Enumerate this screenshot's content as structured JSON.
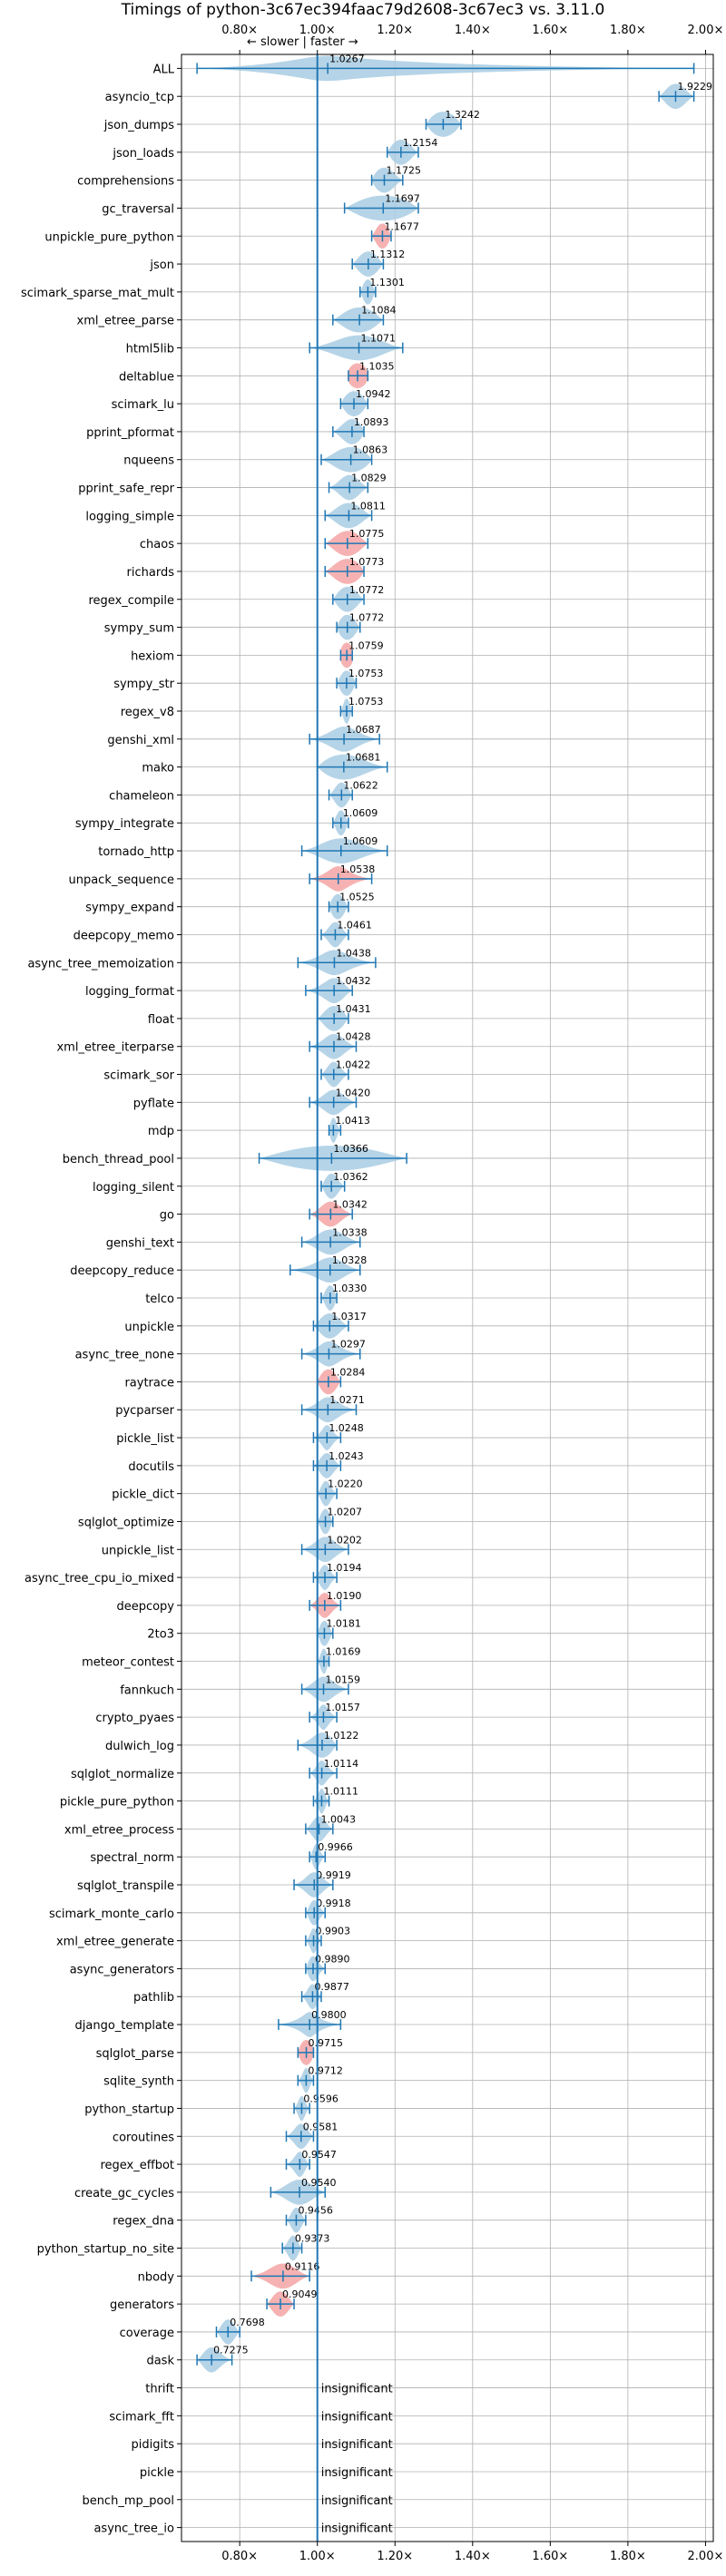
{
  "chart_data": {
    "type": "violin",
    "title": "Timings of python-3c67ec394faac79d2608-3c67ec3 vs. 3.11.0",
    "direction_label": "← slower | faster →",
    "xlim": [
      0.65,
      2.02
    ],
    "xticks": [
      0.8,
      1.0,
      1.2,
      1.4,
      1.6,
      1.8,
      2.0
    ],
    "xtick_labels": [
      "0.80×",
      "1.00×",
      "1.20×",
      "1.40×",
      "1.60×",
      "1.80×",
      "2.00×"
    ],
    "grid": true,
    "colors": {
      "normal": "#a9cce3",
      "regression": "#f5a5a5",
      "axis_line": "#1f77b4",
      "grid": "#b0b0b0"
    },
    "insignificant_label": "insignificant",
    "benchmarks": [
      {
        "name": "ALL",
        "value": 1.0267,
        "label": "1.0267",
        "lo": 0.69,
        "hi": 1.97,
        "spread": 0.1,
        "regressed": false
      },
      {
        "name": "asyncio_tcp",
        "value": 1.9229,
        "label": "1.9229",
        "lo": 1.88,
        "hi": 1.97,
        "spread": 0.03,
        "regressed": false
      },
      {
        "name": "json_dumps",
        "value": 1.3242,
        "label": "1.3242",
        "lo": 1.28,
        "hi": 1.37,
        "spread": 0.04,
        "regressed": false
      },
      {
        "name": "json_loads",
        "value": 1.2154,
        "label": "1.2154",
        "lo": 1.18,
        "hi": 1.26,
        "spread": 0.03,
        "regressed": false
      },
      {
        "name": "comprehensions",
        "value": 1.1725,
        "label": "1.1725",
        "lo": 1.14,
        "hi": 1.22,
        "spread": 0.03,
        "regressed": false
      },
      {
        "name": "gc_traversal",
        "value": 1.1697,
        "label": "1.1697",
        "lo": 1.07,
        "hi": 1.26,
        "spread": 0.08,
        "regressed": false
      },
      {
        "name": "unpickle_pure_python",
        "value": 1.1677,
        "label": "1.1677",
        "lo": 1.14,
        "hi": 1.19,
        "spread": 0.02,
        "regressed": true
      },
      {
        "name": "json",
        "value": 1.1312,
        "label": "1.1312",
        "lo": 1.09,
        "hi": 1.17,
        "spread": 0.03,
        "regressed": false
      },
      {
        "name": "scimark_sparse_mat_mult",
        "value": 1.1301,
        "label": "1.1301",
        "lo": 1.11,
        "hi": 1.15,
        "spread": 0.015,
        "regressed": false
      },
      {
        "name": "xml_etree_parse",
        "value": 1.1084,
        "label": "1.1084",
        "lo": 1.04,
        "hi": 1.17,
        "spread": 0.05,
        "regressed": false
      },
      {
        "name": "html5lib",
        "value": 1.1071,
        "label": "1.1071",
        "lo": 0.98,
        "hi": 1.22,
        "spread": 0.07,
        "regressed": false
      },
      {
        "name": "deltablue",
        "value": 1.1035,
        "label": "1.1035",
        "lo": 1.08,
        "hi": 1.13,
        "spread": 0.03,
        "regressed": true
      },
      {
        "name": "scimark_lu",
        "value": 1.0942,
        "label": "1.0942",
        "lo": 1.06,
        "hi": 1.13,
        "spread": 0.03,
        "regressed": false
      },
      {
        "name": "pprint_pformat",
        "value": 1.0893,
        "label": "1.0893",
        "lo": 1.04,
        "hi": 1.12,
        "spread": 0.03,
        "regressed": false
      },
      {
        "name": "nqueens",
        "value": 1.0863,
        "label": "1.0863",
        "lo": 1.01,
        "hi": 1.14,
        "spread": 0.05,
        "regressed": false
      },
      {
        "name": "pprint_safe_repr",
        "value": 1.0829,
        "label": "1.0829",
        "lo": 1.03,
        "hi": 1.13,
        "spread": 0.03,
        "regressed": false
      },
      {
        "name": "logging_simple",
        "value": 1.0811,
        "label": "1.0811",
        "lo": 1.02,
        "hi": 1.14,
        "spread": 0.04,
        "regressed": false
      },
      {
        "name": "chaos",
        "value": 1.0775,
        "label": "1.0775",
        "lo": 1.02,
        "hi": 1.13,
        "spread": 0.04,
        "regressed": true
      },
      {
        "name": "richards",
        "value": 1.0773,
        "label": "1.0773",
        "lo": 1.02,
        "hi": 1.12,
        "spread": 0.04,
        "regressed": true
      },
      {
        "name": "regex_compile",
        "value": 1.0772,
        "label": "1.0772",
        "lo": 1.04,
        "hi": 1.12,
        "spread": 0.03,
        "regressed": false
      },
      {
        "name": "sympy_sum",
        "value": 1.0772,
        "label": "1.0772",
        "lo": 1.05,
        "hi": 1.11,
        "spread": 0.025,
        "regressed": false
      },
      {
        "name": "hexiom",
        "value": 1.0759,
        "label": "1.0759",
        "lo": 1.06,
        "hi": 1.09,
        "spread": 0.02,
        "regressed": true
      },
      {
        "name": "sympy_str",
        "value": 1.0753,
        "label": "1.0753",
        "lo": 1.05,
        "hi": 1.1,
        "spread": 0.02,
        "regressed": false
      },
      {
        "name": "regex_v8",
        "value": 1.0753,
        "label": "1.0753",
        "lo": 1.06,
        "hi": 1.09,
        "spread": 0.01,
        "regressed": false
      },
      {
        "name": "genshi_xml",
        "value": 1.0687,
        "label": "1.0687",
        "lo": 0.98,
        "hi": 1.16,
        "spread": 0.04,
        "regressed": false
      },
      {
        "name": "mako",
        "value": 1.0681,
        "label": "1.0681",
        "lo": 1.0,
        "hi": 1.18,
        "spread": 0.06,
        "regressed": false
      },
      {
        "name": "chameleon",
        "value": 1.0622,
        "label": "1.0622",
        "lo": 1.03,
        "hi": 1.09,
        "spread": 0.02,
        "regressed": false
      },
      {
        "name": "sympy_integrate",
        "value": 1.0609,
        "label": "1.0609",
        "lo": 1.04,
        "hi": 1.08,
        "spread": 0.015,
        "regressed": false
      },
      {
        "name": "tornado_http",
        "value": 1.0609,
        "label": "1.0609",
        "lo": 0.96,
        "hi": 1.18,
        "spread": 0.06,
        "regressed": false
      },
      {
        "name": "unpack_sequence",
        "value": 1.0538,
        "label": "1.0538",
        "lo": 0.98,
        "hi": 1.14,
        "spread": 0.03,
        "regressed": true
      },
      {
        "name": "sympy_expand",
        "value": 1.0525,
        "label": "1.0525",
        "lo": 1.03,
        "hi": 1.08,
        "spread": 0.02,
        "regressed": false
      },
      {
        "name": "deepcopy_memo",
        "value": 1.0461,
        "label": "1.0461",
        "lo": 1.01,
        "hi": 1.08,
        "spread": 0.02,
        "regressed": false
      },
      {
        "name": "async_tree_memoization",
        "value": 1.0438,
        "label": "1.0438",
        "lo": 0.95,
        "hi": 1.15,
        "spread": 0.04,
        "regressed": false
      },
      {
        "name": "logging_format",
        "value": 1.0432,
        "label": "1.0432",
        "lo": 0.97,
        "hi": 1.09,
        "spread": 0.03,
        "regressed": false
      },
      {
        "name": "float",
        "value": 1.0431,
        "label": "1.0431",
        "lo": 1.0,
        "hi": 1.08,
        "spread": 0.03,
        "regressed": false
      },
      {
        "name": "xml_etree_iterparse",
        "value": 1.0428,
        "label": "1.0428",
        "lo": 0.98,
        "hi": 1.1,
        "spread": 0.03,
        "regressed": false
      },
      {
        "name": "scimark_sor",
        "value": 1.0422,
        "label": "1.0422",
        "lo": 1.01,
        "hi": 1.08,
        "spread": 0.02,
        "regressed": false
      },
      {
        "name": "pyflate",
        "value": 1.042,
        "label": "1.0420",
        "lo": 0.98,
        "hi": 1.1,
        "spread": 0.03,
        "regressed": false
      },
      {
        "name": "mdp",
        "value": 1.0413,
        "label": "1.0413",
        "lo": 1.03,
        "hi": 1.06,
        "spread": 0.01,
        "regressed": false
      },
      {
        "name": "bench_thread_pool",
        "value": 1.0366,
        "label": "1.0366",
        "lo": 0.85,
        "hi": 1.23,
        "spread": 0.15,
        "regressed": false
      },
      {
        "name": "logging_silent",
        "value": 1.0362,
        "label": "1.0362",
        "lo": 1.01,
        "hi": 1.07,
        "spread": 0.02,
        "regressed": false
      },
      {
        "name": "go",
        "value": 1.0342,
        "label": "1.0342",
        "lo": 0.98,
        "hi": 1.09,
        "spread": 0.03,
        "regressed": true
      },
      {
        "name": "genshi_text",
        "value": 1.0338,
        "label": "1.0338",
        "lo": 0.96,
        "hi": 1.11,
        "spread": 0.04,
        "regressed": false
      },
      {
        "name": "deepcopy_reduce",
        "value": 1.0328,
        "label": "1.0328",
        "lo": 0.93,
        "hi": 1.11,
        "spread": 0.04,
        "regressed": false
      },
      {
        "name": "telco",
        "value": 1.033,
        "label": "1.0330",
        "lo": 1.01,
        "hi": 1.05,
        "spread": 0.015,
        "regressed": false
      },
      {
        "name": "unpickle",
        "value": 1.0317,
        "label": "1.0317",
        "lo": 0.99,
        "hi": 1.08,
        "spread": 0.03,
        "regressed": false
      },
      {
        "name": "async_tree_none",
        "value": 1.0297,
        "label": "1.0297",
        "lo": 0.96,
        "hi": 1.11,
        "spread": 0.03,
        "regressed": false
      },
      {
        "name": "raytrace",
        "value": 1.0284,
        "label": "1.0284",
        "lo": 1.0,
        "hi": 1.06,
        "spread": 0.025,
        "regressed": true
      },
      {
        "name": "pycparser",
        "value": 1.0271,
        "label": "1.0271",
        "lo": 0.96,
        "hi": 1.1,
        "spread": 0.03,
        "regressed": false
      },
      {
        "name": "pickle_list",
        "value": 1.0248,
        "label": "1.0248",
        "lo": 0.99,
        "hi": 1.06,
        "spread": 0.015,
        "regressed": false
      },
      {
        "name": "docutils",
        "value": 1.0243,
        "label": "1.0243",
        "lo": 0.99,
        "hi": 1.06,
        "spread": 0.02,
        "regressed": false
      },
      {
        "name": "pickle_dict",
        "value": 1.022,
        "label": "1.0220",
        "lo": 1.0,
        "hi": 1.05,
        "spread": 0.015,
        "regressed": false
      },
      {
        "name": "sqlglot_optimize",
        "value": 1.0207,
        "label": "1.0207",
        "lo": 1.0,
        "hi": 1.04,
        "spread": 0.015,
        "regressed": false
      },
      {
        "name": "unpickle_list",
        "value": 1.0202,
        "label": "1.0202",
        "lo": 0.96,
        "hi": 1.08,
        "spread": 0.03,
        "regressed": false
      },
      {
        "name": "async_tree_cpu_io_mixed",
        "value": 1.0194,
        "label": "1.0194",
        "lo": 0.99,
        "hi": 1.05,
        "spread": 0.015,
        "regressed": false
      },
      {
        "name": "deepcopy",
        "value": 1.019,
        "label": "1.0190",
        "lo": 0.98,
        "hi": 1.06,
        "spread": 0.02,
        "regressed": true
      },
      {
        "name": "2to3",
        "value": 1.0181,
        "label": "1.0181",
        "lo": 1.0,
        "hi": 1.04,
        "spread": 0.015,
        "regressed": false
      },
      {
        "name": "meteor_contest",
        "value": 1.0169,
        "label": "1.0169",
        "lo": 1.0,
        "hi": 1.03,
        "spread": 0.01,
        "regressed": false
      },
      {
        "name": "fannkuch",
        "value": 1.0159,
        "label": "1.0159",
        "lo": 0.96,
        "hi": 1.08,
        "spread": 0.03,
        "regressed": false
      },
      {
        "name": "crypto_pyaes",
        "value": 1.0157,
        "label": "1.0157",
        "lo": 0.98,
        "hi": 1.05,
        "spread": 0.015,
        "regressed": false
      },
      {
        "name": "dulwich_log",
        "value": 1.0122,
        "label": "1.0122",
        "lo": 0.95,
        "hi": 1.05,
        "spread": 0.03,
        "regressed": false
      },
      {
        "name": "sqlglot_normalize",
        "value": 1.0114,
        "label": "1.0114",
        "lo": 0.98,
        "hi": 1.05,
        "spread": 0.015,
        "regressed": false
      },
      {
        "name": "pickle_pure_python",
        "value": 1.0111,
        "label": "1.0111",
        "lo": 0.99,
        "hi": 1.03,
        "spread": 0.01,
        "regressed": false
      },
      {
        "name": "xml_etree_process",
        "value": 1.0043,
        "label": "1.0043",
        "lo": 0.97,
        "hi": 1.04,
        "spread": 0.02,
        "regressed": false
      },
      {
        "name": "spectral_norm",
        "value": 0.9966,
        "label": "0.9966",
        "lo": 0.98,
        "hi": 1.02,
        "spread": 0.01,
        "regressed": false
      },
      {
        "name": "sqlglot_transpile",
        "value": 0.9919,
        "label": "0.9919",
        "lo": 0.94,
        "hi": 1.04,
        "spread": 0.025,
        "regressed": false
      },
      {
        "name": "scimark_monte_carlo",
        "value": 0.9918,
        "label": "0.9918",
        "lo": 0.97,
        "hi": 1.02,
        "spread": 0.015,
        "regressed": false
      },
      {
        "name": "xml_etree_generate",
        "value": 0.9903,
        "label": "0.9903",
        "lo": 0.97,
        "hi": 1.01,
        "spread": 0.01,
        "regressed": false
      },
      {
        "name": "async_generators",
        "value": 0.989,
        "label": "0.9890",
        "lo": 0.97,
        "hi": 1.02,
        "spread": 0.015,
        "regressed": false
      },
      {
        "name": "pathlib",
        "value": 0.9877,
        "label": "0.9877",
        "lo": 0.96,
        "hi": 1.01,
        "spread": 0.015,
        "regressed": false
      },
      {
        "name": "django_template",
        "value": 0.98,
        "label": "0.9800",
        "lo": 0.9,
        "hi": 1.06,
        "spread": 0.02,
        "regressed": false
      },
      {
        "name": "sqlglot_parse",
        "value": 0.9715,
        "label": "0.9715",
        "lo": 0.95,
        "hi": 0.99,
        "spread": 0.02,
        "regressed": true
      },
      {
        "name": "sqlite_synth",
        "value": 0.9712,
        "label": "0.9712",
        "lo": 0.95,
        "hi": 0.99,
        "spread": 0.01,
        "regressed": false
      },
      {
        "name": "python_startup",
        "value": 0.9596,
        "label": "0.9596",
        "lo": 0.94,
        "hi": 0.98,
        "spread": 0.01,
        "regressed": false
      },
      {
        "name": "coroutines",
        "value": 0.9581,
        "label": "0.9581",
        "lo": 0.92,
        "hi": 0.99,
        "spread": 0.02,
        "regressed": false
      },
      {
        "name": "regex_effbot",
        "value": 0.9547,
        "label": "0.9547",
        "lo": 0.92,
        "hi": 0.98,
        "spread": 0.015,
        "regressed": false
      },
      {
        "name": "create_gc_cycles",
        "value": 0.954,
        "label": "0.9540",
        "lo": 0.88,
        "hi": 1.02,
        "spread": 0.04,
        "regressed": false
      },
      {
        "name": "regex_dna",
        "value": 0.9456,
        "label": "0.9456",
        "lo": 0.92,
        "hi": 0.97,
        "spread": 0.015,
        "regressed": false
      },
      {
        "name": "python_startup_no_site",
        "value": 0.9373,
        "label": "0.9373",
        "lo": 0.91,
        "hi": 0.96,
        "spread": 0.015,
        "regressed": false
      },
      {
        "name": "nbody",
        "value": 0.9116,
        "label": "0.9116",
        "lo": 0.83,
        "hi": 0.98,
        "spread": 0.04,
        "regressed": true
      },
      {
        "name": "generators",
        "value": 0.9049,
        "label": "0.9049",
        "lo": 0.87,
        "hi": 0.94,
        "spread": 0.025,
        "regressed": true
      },
      {
        "name": "coverage",
        "value": 0.7698,
        "label": "0.7698",
        "lo": 0.74,
        "hi": 0.8,
        "spread": 0.02,
        "regressed": false
      },
      {
        "name": "dask",
        "value": 0.7275,
        "label": "0.7275",
        "lo": 0.69,
        "hi": 0.78,
        "spread": 0.025,
        "regressed": false
      },
      {
        "name": "thrift",
        "value": null,
        "label": "insignificant"
      },
      {
        "name": "scimark_fft",
        "value": null,
        "label": "insignificant"
      },
      {
        "name": "pidigits",
        "value": null,
        "label": "insignificant"
      },
      {
        "name": "pickle",
        "value": null,
        "label": "insignificant"
      },
      {
        "name": "bench_mp_pool",
        "value": null,
        "label": "insignificant"
      },
      {
        "name": "async_tree_io",
        "value": null,
        "label": "insignificant"
      }
    ]
  }
}
